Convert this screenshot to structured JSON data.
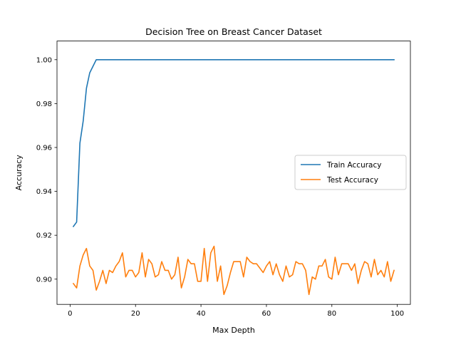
{
  "chart_data": {
    "type": "line",
    "title": "Decision Tree on Breast Cancer Dataset",
    "xlabel": "Max Depth",
    "ylabel": "Accuracy",
    "xlim": [
      -4,
      104
    ],
    "ylim": [
      0.8885,
      1.0085
    ],
    "xticks": [
      0,
      20,
      40,
      60,
      80,
      100
    ],
    "yticks": [
      0.9,
      0.92,
      0.94,
      0.96,
      0.98,
      1.0
    ],
    "ytick_labels": [
      "0.90",
      "0.92",
      "0.94",
      "0.96",
      "0.98",
      "1.00"
    ],
    "legend_position": "center-right",
    "x": [
      1,
      2,
      3,
      4,
      5,
      6,
      7,
      8,
      9,
      10,
      11,
      12,
      13,
      14,
      15,
      16,
      17,
      18,
      19,
      20,
      21,
      22,
      23,
      24,
      25,
      26,
      27,
      28,
      29,
      30,
      31,
      32,
      33,
      34,
      35,
      36,
      37,
      38,
      39,
      40,
      41,
      42,
      43,
      44,
      45,
      46,
      47,
      48,
      49,
      50,
      51,
      52,
      53,
      54,
      55,
      56,
      57,
      58,
      59,
      60,
      61,
      62,
      63,
      64,
      65,
      66,
      67,
      68,
      69,
      70,
      71,
      72,
      73,
      74,
      75,
      76,
      77,
      78,
      79,
      80,
      81,
      82,
      83,
      84,
      85,
      86,
      87,
      88,
      89,
      90,
      91,
      92,
      93,
      94,
      95,
      96,
      97,
      98,
      99
    ],
    "series": [
      {
        "name": "Train Accuracy",
        "color": "#1f77b4",
        "values": [
          0.924,
          0.926,
          0.962,
          0.972,
          0.987,
          0.994,
          0.997,
          1.0,
          1.0,
          1.0,
          1.0,
          1.0,
          1.0,
          1.0,
          1.0,
          1.0,
          1.0,
          1.0,
          1.0,
          1.0,
          1.0,
          1.0,
          1.0,
          1.0,
          1.0,
          1.0,
          1.0,
          1.0,
          1.0,
          1.0,
          1.0,
          1.0,
          1.0,
          1.0,
          1.0,
          1.0,
          1.0,
          1.0,
          1.0,
          1.0,
          1.0,
          1.0,
          1.0,
          1.0,
          1.0,
          1.0,
          1.0,
          1.0,
          1.0,
          1.0,
          1.0,
          1.0,
          1.0,
          1.0,
          1.0,
          1.0,
          1.0,
          1.0,
          1.0,
          1.0,
          1.0,
          1.0,
          1.0,
          1.0,
          1.0,
          1.0,
          1.0,
          1.0,
          1.0,
          1.0,
          1.0,
          1.0,
          1.0,
          1.0,
          1.0,
          1.0,
          1.0,
          1.0,
          1.0,
          1.0,
          1.0,
          1.0,
          1.0,
          1.0,
          1.0,
          1.0,
          1.0,
          1.0,
          1.0,
          1.0,
          1.0,
          1.0,
          1.0,
          1.0,
          1.0,
          1.0,
          1.0,
          1.0,
          1.0
        ]
      },
      {
        "name": "Test Accuracy",
        "color": "#ff7f0e",
        "values": [
          0.898,
          0.896,
          0.906,
          0.911,
          0.914,
          0.906,
          0.904,
          0.895,
          0.899,
          0.904,
          0.898,
          0.904,
          0.903,
          0.906,
          0.908,
          0.912,
          0.901,
          0.904,
          0.904,
          0.901,
          0.903,
          0.912,
          0.901,
          0.909,
          0.907,
          0.901,
          0.902,
          0.908,
          0.904,
          0.904,
          0.9,
          0.902,
          0.91,
          0.896,
          0.901,
          0.909,
          0.907,
          0.907,
          0.899,
          0.899,
          0.914,
          0.899,
          0.912,
          0.915,
          0.899,
          0.906,
          0.893,
          0.897,
          0.903,
          0.908,
          0.908,
          0.908,
          0.901,
          0.91,
          0.908,
          0.907,
          0.907,
          0.905,
          0.903,
          0.906,
          0.908,
          0.902,
          0.907,
          0.902,
          0.899,
          0.906,
          0.901,
          0.902,
          0.908,
          0.907,
          0.907,
          0.904,
          0.893,
          0.901,
          0.9,
          0.906,
          0.906,
          0.909,
          0.901,
          0.9,
          0.91,
          0.902,
          0.907,
          0.907,
          0.907,
          0.904,
          0.907,
          0.898,
          0.904,
          0.908,
          0.907,
          0.901,
          0.909,
          0.902,
          0.904,
          0.901,
          0.908,
          0.899,
          0.904
        ]
      }
    ]
  }
}
